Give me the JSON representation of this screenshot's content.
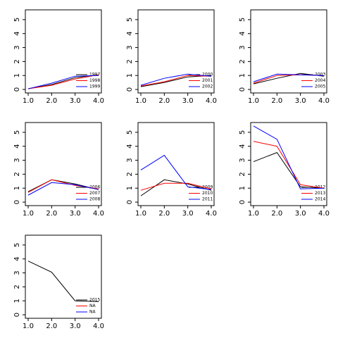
{
  "chart_data": [
    {
      "type": "line",
      "x": [
        1,
        2,
        3,
        4
      ],
      "xlim": [
        0.88,
        4.12
      ],
      "ylim": [
        -0.25,
        5.7
      ],
      "xticks": [
        {
          "value": 1,
          "label": "1.0"
        },
        {
          "value": 2,
          "label": "2.0"
        },
        {
          "value": 3,
          "label": "3.0"
        },
        {
          "value": 4,
          "label": "4.0"
        }
      ],
      "yticks": [
        0,
        1,
        2,
        3,
        4,
        5
      ],
      "legend": "bottom-right",
      "series": [
        {
          "name": "1997",
          "color": "#000000",
          "values": [
            0.05,
            0.35,
            0.85,
            1.05
          ]
        },
        {
          "name": "1998",
          "color": "#ff0000",
          "values": [
            0.05,
            0.3,
            0.75,
            1.05
          ]
        },
        {
          "name": "1999",
          "color": "#0000ff",
          "values": [
            0.05,
            0.45,
            0.95,
            1.0
          ]
        }
      ]
    },
    {
      "type": "line",
      "x": [
        1,
        2,
        3,
        4
      ],
      "xlim": [
        0.88,
        4.12
      ],
      "ylim": [
        -0.25,
        5.7
      ],
      "xticks": [
        {
          "value": 1,
          "label": "1.0"
        },
        {
          "value": 2,
          "label": "2.0"
        },
        {
          "value": 3,
          "label": "3.0"
        },
        {
          "value": 4,
          "label": "4.0"
        }
      ],
      "yticks": [
        0,
        1,
        2,
        3,
        4,
        5
      ],
      "legend": "bottom-right",
      "series": [
        {
          "name": "2000",
          "color": "#000000",
          "values": [
            0.2,
            0.5,
            0.9,
            1.0
          ]
        },
        {
          "name": "2001",
          "color": "#ff0000",
          "values": [
            0.25,
            0.55,
            1.0,
            0.95
          ]
        },
        {
          "name": "2002",
          "color": "#0000ff",
          "values": [
            0.3,
            0.8,
            1.1,
            0.95
          ]
        }
      ]
    },
    {
      "type": "line",
      "x": [
        1,
        2,
        3,
        4
      ],
      "xlim": [
        0.88,
        4.12
      ],
      "ylim": [
        -0.25,
        5.7
      ],
      "xticks": [
        {
          "value": 1,
          "label": "1.0"
        },
        {
          "value": 2,
          "label": "2.0"
        },
        {
          "value": 3,
          "label": "3.0"
        },
        {
          "value": 4,
          "label": "4.0"
        }
      ],
      "yticks": [
        0,
        1,
        2,
        3,
        4,
        5
      ],
      "legend": "bottom-right",
      "series": [
        {
          "name": "2003",
          "color": "#000000",
          "values": [
            0.4,
            0.8,
            1.15,
            0.95
          ]
        },
        {
          "name": "2004",
          "color": "#ff0000",
          "values": [
            0.45,
            1.0,
            1.05,
            1.0
          ]
        },
        {
          "name": "2005",
          "color": "#0000ff",
          "values": [
            0.55,
            1.1,
            1.05,
            1.0
          ]
        }
      ]
    },
    {
      "type": "line",
      "x": [
        1,
        2,
        3,
        4
      ],
      "xlim": [
        0.88,
        4.12
      ],
      "ylim": [
        -0.25,
        5.7
      ],
      "xticks": [
        {
          "value": 1,
          "label": "1.0"
        },
        {
          "value": 2,
          "label": "2.0"
        },
        {
          "value": 3,
          "label": "3.0"
        },
        {
          "value": 4,
          "label": "4.0"
        }
      ],
      "yticks": [
        0,
        1,
        2,
        3,
        4,
        5
      ],
      "legend": "bottom-right",
      "series": [
        {
          "name": "2006",
          "color": "#000000",
          "values": [
            0.75,
            1.6,
            1.3,
            0.9
          ]
        },
        {
          "name": "2007",
          "color": "#ff0000",
          "values": [
            0.7,
            1.6,
            1.2,
            0.95
          ]
        },
        {
          "name": "2008",
          "color": "#0000ff",
          "values": [
            0.5,
            1.4,
            1.25,
            0.9
          ]
        }
      ]
    },
    {
      "type": "line",
      "x": [
        1,
        2,
        3,
        4
      ],
      "xlim": [
        0.88,
        4.12
      ],
      "ylim": [
        -0.25,
        5.7
      ],
      "xticks": [
        {
          "value": 1,
          "label": "1.0"
        },
        {
          "value": 2,
          "label": "2.0"
        },
        {
          "value": 3,
          "label": "3.0"
        },
        {
          "value": 4,
          "label": "4.0"
        }
      ],
      "yticks": [
        0,
        1,
        2,
        3,
        4,
        5
      ],
      "legend": "bottom-right",
      "series": [
        {
          "name": "2009",
          "color": "#000000",
          "values": [
            0.45,
            1.6,
            1.3,
            0.85
          ]
        },
        {
          "name": "2010",
          "color": "#ff0000",
          "values": [
            0.85,
            1.35,
            1.35,
            0.95
          ]
        },
        {
          "name": "2011",
          "color": "#0000ff",
          "values": [
            2.3,
            3.35,
            1.1,
            0.9
          ]
        }
      ]
    },
    {
      "type": "line",
      "x": [
        1,
        2,
        3,
        4
      ],
      "xlim": [
        0.88,
        4.12
      ],
      "ylim": [
        -0.25,
        5.7
      ],
      "xticks": [
        {
          "value": 1,
          "label": "1.0"
        },
        {
          "value": 2,
          "label": "2.0"
        },
        {
          "value": 3,
          "label": "3.0"
        },
        {
          "value": 4,
          "label": "4.0"
        }
      ],
      "yticks": [
        0,
        1,
        2,
        3,
        4,
        5
      ],
      "legend": "bottom-right",
      "series": [
        {
          "name": "2012",
          "color": "#000000",
          "values": [
            2.9,
            3.55,
            1.1,
            1.0
          ]
        },
        {
          "name": "2013",
          "color": "#ff0000",
          "values": [
            4.35,
            4.0,
            1.25,
            1.0
          ]
        },
        {
          "name": "2014",
          "color": "#0000ff",
          "values": [
            5.45,
            4.5,
            0.95,
            1.0
          ]
        }
      ]
    },
    {
      "type": "line",
      "x": [
        1,
        2,
        3,
        4
      ],
      "xlim": [
        0.88,
        4.12
      ],
      "ylim": [
        -0.25,
        5.7
      ],
      "xticks": [
        {
          "value": 1,
          "label": "1.0"
        },
        {
          "value": 2,
          "label": "2.0"
        },
        {
          "value": 3,
          "label": "3.0"
        },
        {
          "value": 4,
          "label": "4.0"
        }
      ],
      "yticks": [
        0,
        1,
        2,
        3,
        4,
        5
      ],
      "legend": "bottom-right",
      "series": [
        {
          "name": "2015",
          "color": "#000000",
          "values": [
            3.85,
            3.05,
            1.0,
            0.95
          ]
        },
        {
          "name": "NA",
          "color": "#ff0000",
          "values": [
            null,
            null,
            null,
            null
          ]
        },
        {
          "name": "NA",
          "color": "#0000ff",
          "values": [
            null,
            null,
            null,
            null
          ]
        }
      ]
    }
  ]
}
